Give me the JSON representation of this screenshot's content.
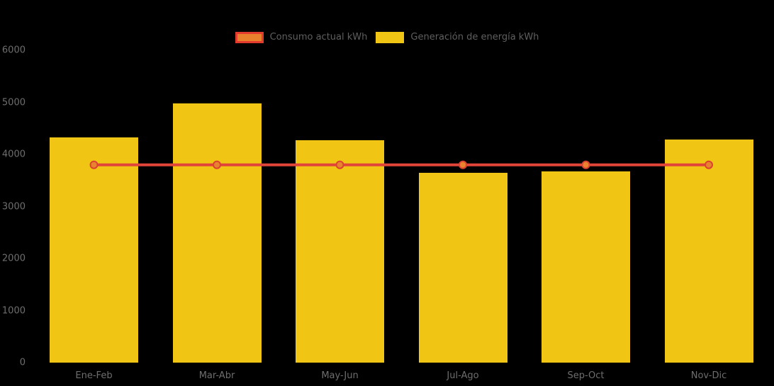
{
  "background_color": "#000000",
  "legend": {
    "items": [
      {
        "label": "Consumo actual kWh",
        "swatch_fill": "#E8802D",
        "swatch_border": "#E23B2E",
        "series_type": "line"
      },
      {
        "label": "Generación de energía kWh",
        "swatch_fill": "#F0C514",
        "swatch_border": "#F0C514",
        "series_type": "bar"
      }
    ]
  },
  "chart_data": {
    "type": "bar",
    "title": "",
    "xlabel": "",
    "ylabel": "",
    "categories": [
      "Ene-Feb",
      "Mar-Abr",
      "May-Jun",
      "Jul-Ago",
      "Sep-Oct",
      "Nov-Dic"
    ],
    "series": [
      {
        "name": "Generación de energía kWh",
        "type": "bar",
        "color": "#F0C514",
        "values": [
          4320,
          4980,
          4270,
          3650,
          3670,
          4290
        ]
      },
      {
        "name": "Consumo actual kWh",
        "type": "line",
        "color": "#E1453A",
        "marker_fill": "#E8842D",
        "marker_stroke": "#DC4231",
        "values": [
          3800,
          3800,
          3800,
          3800,
          3800,
          3800
        ]
      }
    ],
    "ylim": [
      0,
      6000
    ],
    "y_ticks": [
      0,
      1000,
      2000,
      3000,
      4000,
      5000,
      6000
    ],
    "grid": false,
    "legend_position": "top-center",
    "axis_label_color": "#6e6e6e"
  }
}
